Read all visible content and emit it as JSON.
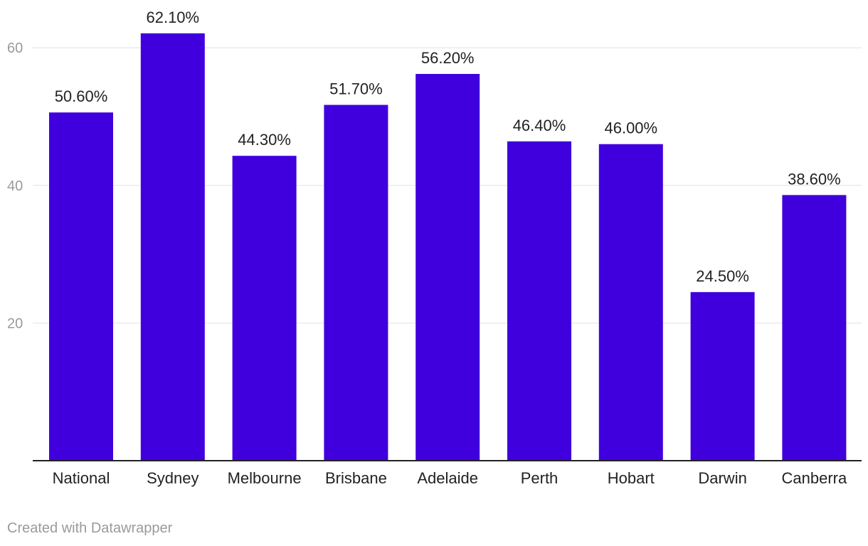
{
  "chart_data": {
    "type": "bar",
    "categories": [
      "National",
      "Sydney",
      "Melbourne",
      "Brisbane",
      "Adelaide",
      "Perth",
      "Hobart",
      "Darwin",
      "Canberra"
    ],
    "values": [
      50.6,
      62.1,
      44.3,
      51.7,
      56.2,
      46.4,
      46.0,
      24.5,
      38.6
    ],
    "value_labels": [
      "50.60%",
      "62.10%",
      "44.30%",
      "51.70%",
      "56.20%",
      "46.40%",
      "46.00%",
      "24.50%",
      "38.60%"
    ],
    "y_ticks": [
      20,
      40,
      60
    ],
    "ylim": [
      0,
      60
    ],
    "grid": true,
    "bar_color": "#4000dd"
  },
  "footer": {
    "credit": "Created with Datawrapper"
  }
}
